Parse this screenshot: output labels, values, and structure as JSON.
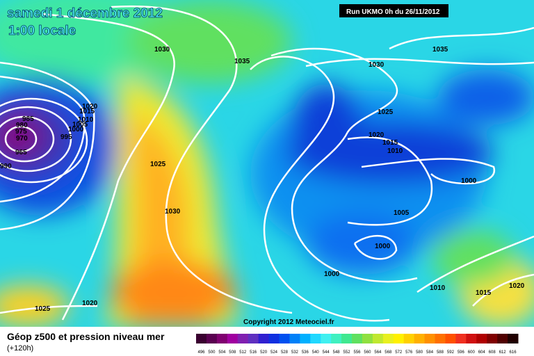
{
  "header": {
    "date": "samedi 1 décembre 2012",
    "time": "1:00 locale",
    "run": "Run UKMO 0h du 26/11/2012"
  },
  "isobar_labels": [
    "1030",
    "1035",
    "1030",
    "1035",
    "1020",
    "1015",
    "1010",
    "1005",
    "1000",
    "995",
    "985",
    "980",
    "975",
    "970",
    "965",
    "990",
    "1025",
    "1020",
    "1015",
    "1010",
    "1025",
    "1000",
    "1030",
    "1005",
    "1000",
    "1000",
    "1010",
    "1015",
    "1020",
    "1025",
    "1020"
  ],
  "copyright": "Copyright 2012 Meteociel.fr",
  "footer": {
    "title": "Géop z500 et pression niveau mer",
    "subtitle": "(+120h)"
  },
  "colorbar": {
    "labels": [
      "496",
      "500",
      "504",
      "508",
      "512",
      "516",
      "520",
      "524",
      "528",
      "532",
      "536",
      "540",
      "544",
      "548",
      "552",
      "556",
      "560",
      "564",
      "568",
      "572",
      "576",
      "580",
      "584",
      "588",
      "592",
      "596",
      "600",
      "604",
      "608",
      "612",
      "616"
    ],
    "colors": [
      "#3a0030",
      "#5a0050",
      "#800070",
      "#a000a0",
      "#8020b0",
      "#6030c0",
      "#3020d0",
      "#1030e0",
      "#0050f0",
      "#0080f8",
      "#00b0ff",
      "#20d8ff",
      "#40f0f0",
      "#40f0c0",
      "#40e890",
      "#60e060",
      "#90e040",
      "#c0e830",
      "#e8f020",
      "#fff000",
      "#ffd000",
      "#ffb000",
      "#ff9000",
      "#ff7000",
      "#ff5000",
      "#f03020",
      "#d01010",
      "#b00000",
      "#800000",
      "#500000",
      "#200000"
    ]
  }
}
